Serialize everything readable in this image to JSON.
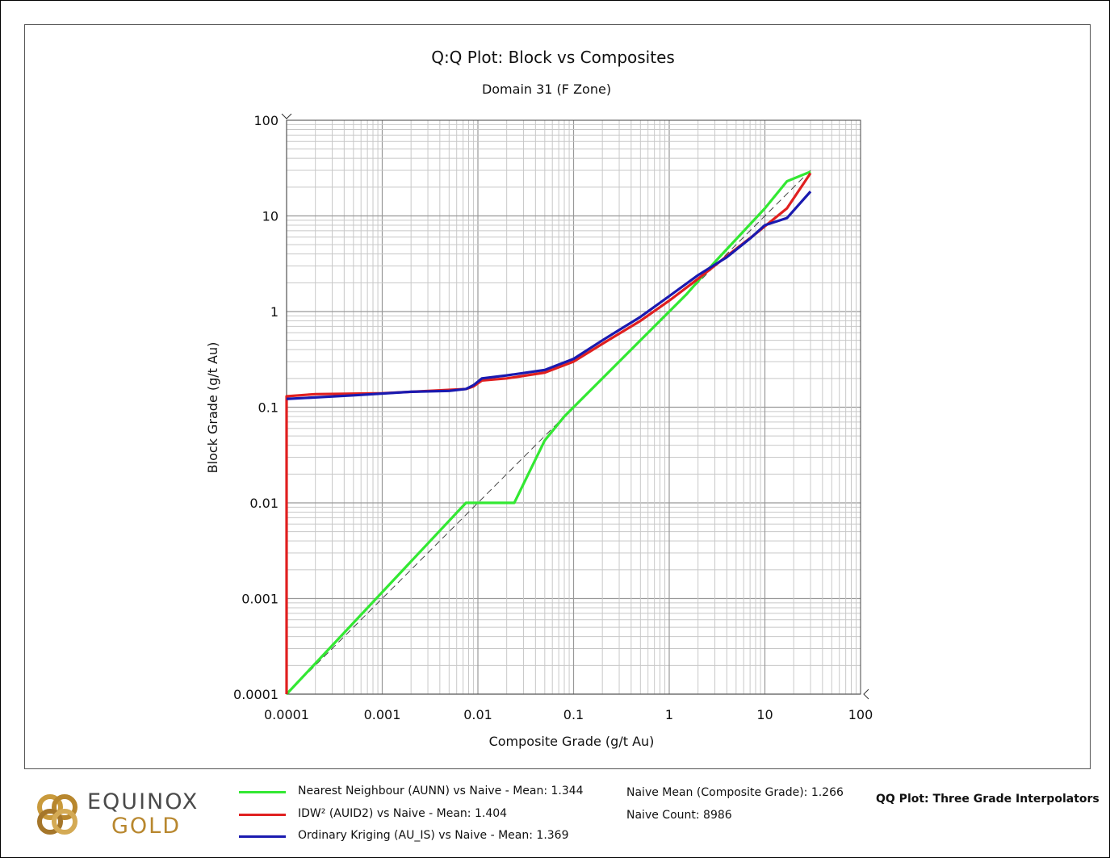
{
  "chart_data": {
    "type": "line",
    "title": "Q:Q Plot: Block vs Composites",
    "subtitle": "Domain 31 (F Zone)",
    "xlabel": "Composite Grade (g/t Au)",
    "ylabel": "Block Grade (g/t Au)",
    "xscale": "log",
    "yscale": "log",
    "xlim": [
      0.0001,
      100
    ],
    "ylim": [
      0.0001,
      100
    ],
    "grid": true,
    "x_ticks": [
      "0.0001",
      "0.001",
      "0.01",
      "0.1",
      "1",
      "10",
      "100"
    ],
    "y_ticks": [
      "0.0001",
      "0.001",
      "0.01",
      "0.1",
      "1",
      "10",
      "100"
    ],
    "reference_line": {
      "style": "dashed",
      "color": "#444444",
      "points": [
        [
          0.0001,
          0.0001
        ],
        [
          30,
          30
        ]
      ]
    },
    "series": [
      {
        "name": "Nearest Neighbour (AUNN) vs Naive - Mean: 1.344",
        "color": "#33e833",
        "points": [
          [
            0.0001,
            0.0001
          ],
          [
            0.0075,
            0.01
          ],
          [
            0.024,
            0.01
          ],
          [
            0.05,
            0.045
          ],
          [
            0.08,
            0.08
          ],
          [
            0.13,
            0.13
          ],
          [
            0.5,
            0.5
          ],
          [
            1.5,
            1.5
          ],
          [
            3,
            3.3
          ],
          [
            10,
            12
          ],
          [
            17,
            23
          ],
          [
            30,
            29
          ]
        ]
      },
      {
        "name": "IDW² (AUID2) vs Naive - Mean: 1.404",
        "color": "#e02020",
        "points": [
          [
            0.0001,
            0.0001
          ],
          [
            0.0001,
            0.13
          ],
          [
            0.0002,
            0.137
          ],
          [
            0.001,
            0.14
          ],
          [
            0.004,
            0.15
          ],
          [
            0.0075,
            0.155
          ],
          [
            0.009,
            0.165
          ],
          [
            0.011,
            0.19
          ],
          [
            0.02,
            0.2
          ],
          [
            0.05,
            0.23
          ],
          [
            0.1,
            0.3
          ],
          [
            0.2,
            0.46
          ],
          [
            0.5,
            0.8
          ],
          [
            1,
            1.3
          ],
          [
            2,
            2.2
          ],
          [
            4,
            3.8
          ],
          [
            8,
            6.5
          ],
          [
            17,
            12
          ],
          [
            30,
            28
          ]
        ]
      },
      {
        "name": "Ordinary Kriging (AU_IS) vs Naive - Mean: 1.369",
        "color": "#1a1ab0",
        "points": [
          [
            0.0001,
            0.122
          ],
          [
            0.0005,
            0.133
          ],
          [
            0.002,
            0.145
          ],
          [
            0.005,
            0.148
          ],
          [
            0.0075,
            0.155
          ],
          [
            0.009,
            0.17
          ],
          [
            0.011,
            0.2
          ],
          [
            0.02,
            0.215
          ],
          [
            0.05,
            0.245
          ],
          [
            0.1,
            0.32
          ],
          [
            0.2,
            0.5
          ],
          [
            0.5,
            0.88
          ],
          [
            1,
            1.45
          ],
          [
            2,
            2.4
          ],
          [
            4,
            3.7
          ],
          [
            7,
            5.8
          ],
          [
            10,
            8
          ],
          [
            17,
            9.5
          ],
          [
            30,
            18
          ]
        ]
      }
    ],
    "stats": {
      "naive_mean": "Naive Mean (Composite Grade): 1.266",
      "naive_count": "Naive Count: 8986"
    },
    "footer_title": "QQ Plot: Three Grade Interpolators"
  },
  "logo": {
    "line1": "EQUINOX",
    "line2": "GOLD",
    "colors": {
      "gold": "#b8872e",
      "dark": "#4a4a4a"
    }
  }
}
